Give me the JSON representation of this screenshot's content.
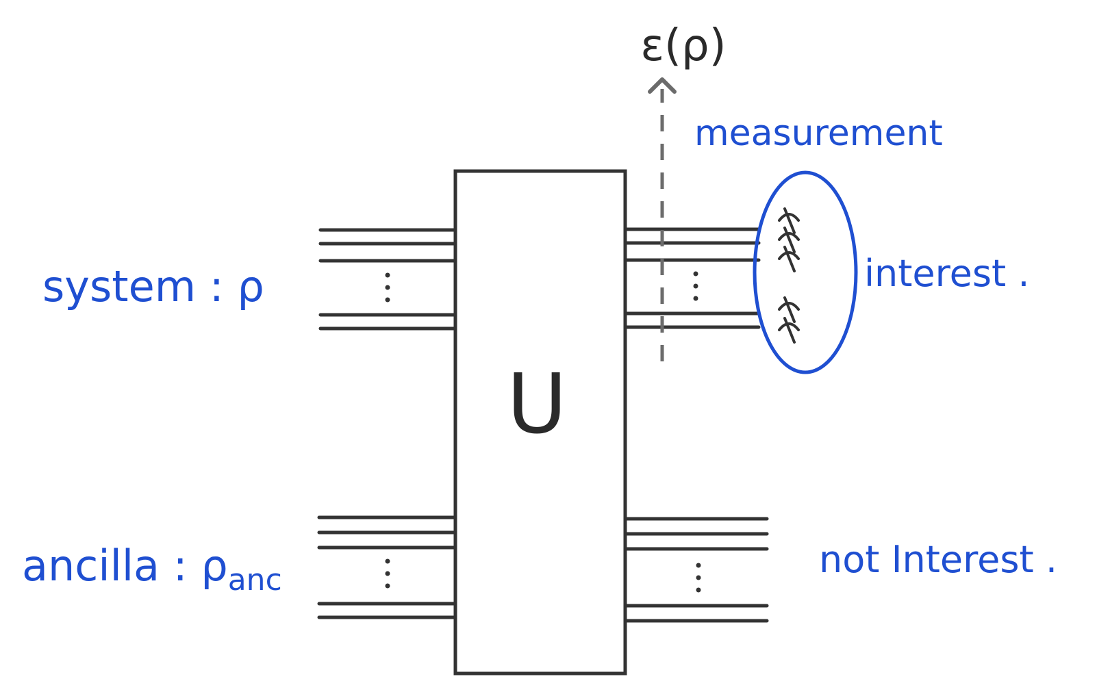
{
  "labels": {
    "output": "ε(ρ)",
    "measurement": "measurement",
    "interest": "interest .",
    "not_interest": "not Interest .",
    "system": "system : ρ",
    "ancilla_prefix": "ancilla : ρ",
    "ancilla_sub": "anc",
    "unitary": "U",
    "vdots": "⋮"
  },
  "colors": {
    "ink_blue": "#1f4fd1",
    "ink_dark": "#2a2a2a",
    "wire": "#333333",
    "arrow": "#6b6b6b"
  }
}
